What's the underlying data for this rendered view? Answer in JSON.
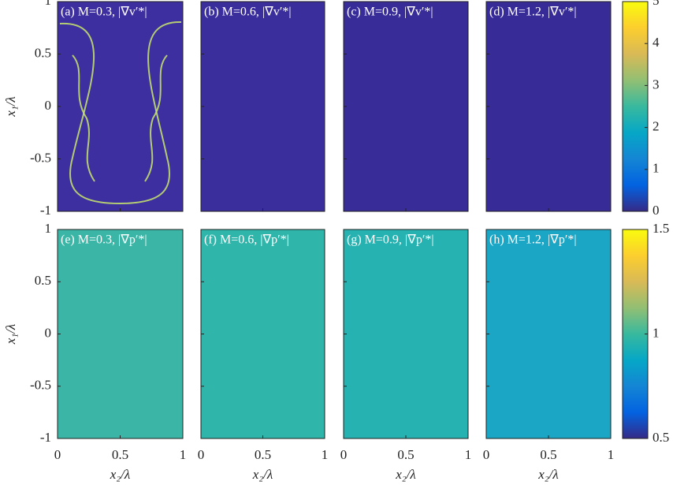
{
  "chart_data": [
    {
      "type": "heatmap",
      "title": "(a) M=0.3, |∇v′*|",
      "color": "#3e2fa0",
      "xlim": [
        0,
        1
      ],
      "ylim": [
        -1,
        1
      ],
      "xticks": [
        0,
        0.5,
        1
      ],
      "yticks": [
        -1,
        -0.5,
        0,
        0.5,
        1
      ],
      "ylabel": "x₁/λ"
    },
    {
      "type": "heatmap",
      "title": "(b) M=0.6, |∇v′*|",
      "color": "#3a2d9c",
      "xlim": [
        0,
        1
      ],
      "ylim": [
        -1,
        1
      ],
      "xticks": [
        0,
        0.5,
        1
      ],
      "yticks": [
        -1,
        -0.5,
        0,
        0.5,
        1
      ]
    },
    {
      "type": "heatmap",
      "title": "(c) M=0.9, |∇v′*|",
      "color": "#382c99",
      "xlim": [
        0,
        1
      ],
      "ylim": [
        -1,
        1
      ],
      "xticks": [
        0,
        0.5,
        1
      ],
      "yticks": [
        -1,
        -0.5,
        0,
        0.5,
        1
      ]
    },
    {
      "type": "heatmap",
      "title": "(d) M=1.2, |∇v′*|",
      "color": "#372b97",
      "xlim": [
        0,
        1
      ],
      "ylim": [
        -1,
        1
      ],
      "xticks": [
        0,
        0.5,
        1
      ],
      "yticks": [
        -1,
        -0.5,
        0,
        0.5,
        1
      ]
    },
    {
      "type": "colorbar",
      "colormap": [
        "#352a87",
        "#0363e1",
        "#1485d4",
        "#06a7c6",
        "#38b99e",
        "#92bf73",
        "#d9ba56",
        "#fcce2e",
        "#f9fb0e"
      ],
      "ylim": [
        0,
        5
      ],
      "yticks": [
        0,
        1,
        2,
        3,
        4,
        5
      ]
    },
    {
      "type": "heatmap",
      "title": "(e) M=0.3, |∇p′*|",
      "color": "#3bb6a6",
      "xlim": [
        0,
        1
      ],
      "ylim": [
        -1,
        1
      ],
      "xticks": [
        0,
        0.5,
        1
      ],
      "yticks": [
        -1,
        -0.5,
        0,
        0.5,
        1
      ],
      "xlabel": "x₂/λ",
      "ylabel": "x₁/λ"
    },
    {
      "type": "heatmap",
      "title": "(f) M=0.6, |∇p′*|",
      "color": "#2fb5aa",
      "xlim": [
        0,
        1
      ],
      "ylim": [
        -1,
        1
      ],
      "xticks": [
        0,
        0.5,
        1
      ],
      "yticks": [
        -1,
        -0.5,
        0,
        0.5,
        1
      ],
      "xlabel": "x₂/λ"
    },
    {
      "type": "heatmap",
      "title": "(g) M=0.9, |∇p′*|",
      "color": "#26b2b0",
      "xlim": [
        0,
        1
      ],
      "ylim": [
        -1,
        1
      ],
      "xticks": [
        0,
        0.5,
        1
      ],
      "yticks": [
        -1,
        -0.5,
        0,
        0.5,
        1
      ],
      "xlabel": "x₂/λ"
    },
    {
      "type": "heatmap",
      "title": "(h) M=1.2, |∇p′*|",
      "color": "#1aa6c4",
      "xlim": [
        0,
        1
      ],
      "ylim": [
        -1,
        1
      ],
      "xticks": [
        0,
        0.5,
        1
      ],
      "yticks": [
        -1,
        -0.5,
        0,
        0.5,
        1
      ],
      "xlabel": "x₂/λ"
    },
    {
      "type": "colorbar",
      "colormap": [
        "#352a87",
        "#0363e1",
        "#1485d4",
        "#06a7c6",
        "#38b99e",
        "#92bf73",
        "#d9ba56",
        "#fcce2e",
        "#f9fb0e"
      ],
      "ylim": [
        0.5,
        1.5
      ],
      "yticks": [
        0.5,
        1,
        1.5
      ]
    }
  ]
}
